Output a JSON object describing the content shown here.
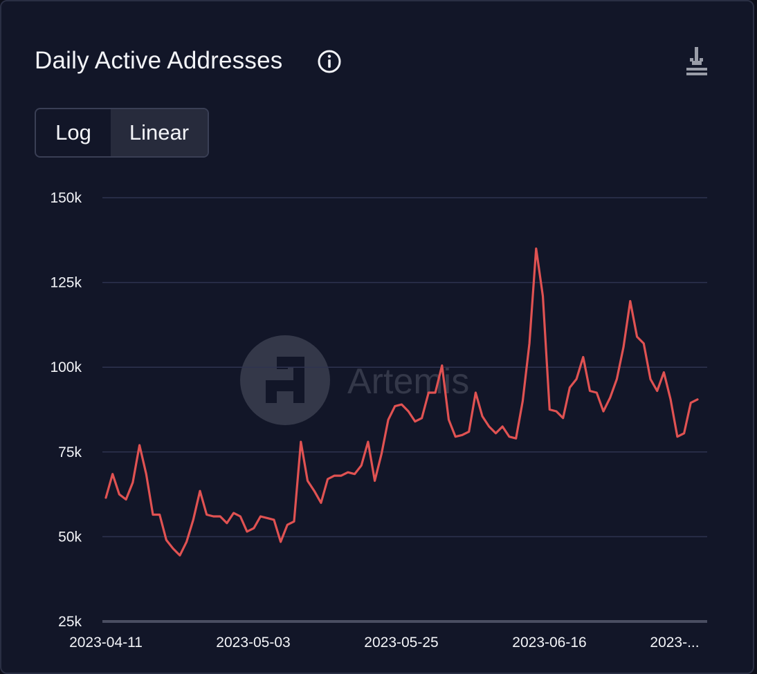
{
  "card": {
    "title": "Daily Active Addresses",
    "scale_options": [
      "Log",
      "Linear"
    ],
    "selected_scale": "Linear",
    "watermark": "Artemis"
  },
  "colors": {
    "background": "#121628",
    "line": "#e05252",
    "grid": "#2e3350",
    "text": "#f3f4f8"
  },
  "chart_data": {
    "type": "line",
    "title": "Daily Active Addresses",
    "xlabel": "",
    "ylabel": "",
    "ylim": [
      25000,
      150000
    ],
    "y_ticks": [
      25000,
      50000,
      75000,
      100000,
      125000,
      150000
    ],
    "y_tick_labels": [
      "25k",
      "50k",
      "75k",
      "100k",
      "125k",
      "150k"
    ],
    "x_tick_labels": [
      "2023-04-11",
      "2023-05-03",
      "2023-05-25",
      "2023-06-16",
      "2023-..."
    ],
    "x_start_date": "2023-04-11",
    "grid": true,
    "series": [
      {
        "values": [
          61500,
          68500,
          62500,
          61000,
          66000,
          77000,
          68500,
          56500,
          56500,
          49000,
          46500,
          44500,
          48500,
          55000,
          63500,
          56500,
          56000,
          56000,
          54000,
          57000,
          56000,
          51500,
          52500,
          56000,
          55500,
          55000,
          48500,
          53500,
          54500,
          78000,
          66500,
          63500,
          60000,
          67000,
          68000,
          68000,
          69000,
          68500,
          71000,
          78000,
          66500,
          74500,
          84500,
          88500,
          89000,
          87000,
          84000,
          85000,
          92500,
          92500,
          100500,
          84500,
          79500,
          80000,
          81000,
          92500,
          85500,
          82500,
          80500,
          82500,
          79500,
          79000,
          90000,
          107000,
          135000,
          121000,
          87500,
          87000,
          85000,
          94000,
          96500,
          103000,
          93000,
          92500,
          87000,
          91000,
          96500,
          106000,
          119500,
          109000,
          107000,
          96500,
          93000,
          98500,
          90500,
          79500,
          80500,
          89500,
          90500
        ]
      }
    ]
  }
}
